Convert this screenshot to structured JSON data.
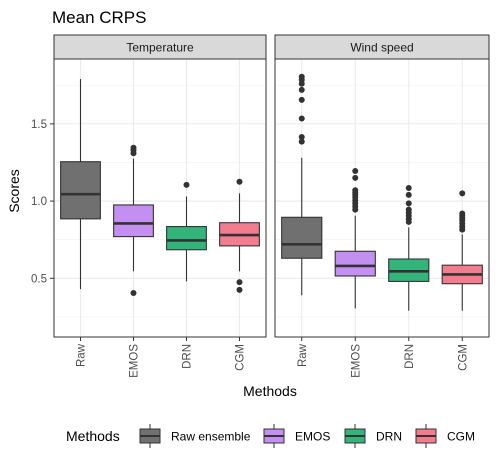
{
  "title": "Mean CRPS",
  "chart_data": {
    "type": "boxplot",
    "title": "Mean CRPS",
    "xlabel": "Methods",
    "ylabel": "Scores",
    "ylim": [
      0.12,
      1.92
    ],
    "yticks": [
      0.5,
      1.0,
      1.5
    ],
    "ytick_labels": [
      "0.5",
      "1.0",
      "1.5"
    ],
    "categories": [
      "Raw",
      "EMOS",
      "DRN",
      "CGM"
    ],
    "grid": true,
    "legend": {
      "title": "Methods",
      "position": "bottom",
      "entries": [
        {
          "label": "Raw ensemble",
          "color": "#707070"
        },
        {
          "label": "EMOS",
          "color": "#c38ff0"
        },
        {
          "label": "DRN",
          "color": "#33b47b"
        },
        {
          "label": "CGM",
          "color": "#f47c8f"
        }
      ]
    },
    "panels": [
      {
        "label": "Temperature",
        "boxes": [
          {
            "category": "Raw",
            "lower_whisker": 0.43,
            "q1": 0.885,
            "median": 1.045,
            "q3": 1.255,
            "upper_whisker": 1.79,
            "outliers": []
          },
          {
            "category": "EMOS",
            "lower_whisker": 0.545,
            "q1": 0.77,
            "median": 0.855,
            "q3": 0.975,
            "upper_whisker": 1.275,
            "outliers": [
              1.345,
              1.33,
              1.31,
              0.405
            ]
          },
          {
            "category": "DRN",
            "lower_whisker": 0.48,
            "q1": 0.685,
            "median": 0.745,
            "q3": 0.835,
            "upper_whisker": 1.03,
            "outliers": [
              1.105
            ]
          },
          {
            "category": "CGM",
            "lower_whisker": 0.545,
            "q1": 0.71,
            "median": 0.78,
            "q3": 0.86,
            "upper_whisker": 1.05,
            "outliers": [
              1.125,
              0.475,
              0.425
            ]
          }
        ]
      },
      {
        "label": "Wind speed",
        "boxes": [
          {
            "category": "Raw",
            "lower_whisker": 0.39,
            "q1": 0.63,
            "median": 0.72,
            "q3": 0.895,
            "upper_whisker": 1.28,
            "outliers": [
              1.805,
              1.785,
              1.76,
              1.72,
              1.655,
              1.535,
              1.415,
              1.385
            ]
          },
          {
            "category": "EMOS",
            "lower_whisker": 0.305,
            "q1": 0.515,
            "median": 0.58,
            "q3": 0.675,
            "upper_whisker": 0.905,
            "outliers": [
              1.195,
              1.15,
              1.07,
              1.055,
              1.04,
              1.025,
              1.005,
              0.985,
              0.965,
              0.945
            ]
          },
          {
            "category": "DRN",
            "lower_whisker": 0.29,
            "q1": 0.48,
            "median": 0.545,
            "q3": 0.625,
            "upper_whisker": 0.83,
            "outliers": [
              1.085,
              1.04,
              0.985,
              0.945,
              0.925,
              0.905,
              0.885,
              0.865
            ]
          },
          {
            "category": "CGM",
            "lower_whisker": 0.29,
            "q1": 0.465,
            "median": 0.525,
            "q3": 0.585,
            "upper_whisker": 0.785,
            "outliers": [
              1.05,
              0.92,
              0.905,
              0.89,
              0.875,
              0.855,
              0.835,
              0.815
            ]
          }
        ]
      }
    ]
  }
}
